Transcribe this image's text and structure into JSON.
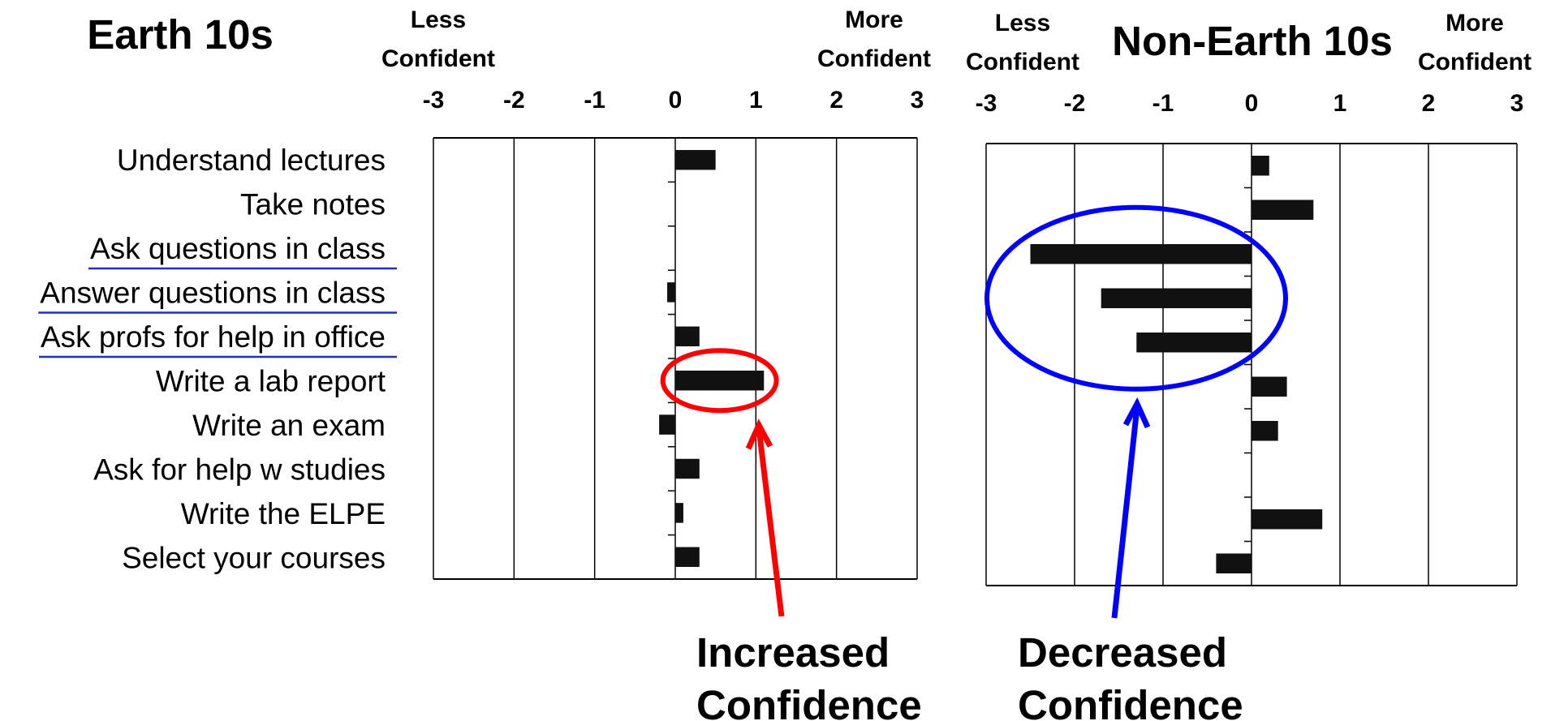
{
  "chart_data": [
    {
      "type": "bar",
      "orientation": "horizontal",
      "title": "Earth 10s",
      "left_label": [
        "Less",
        "Confident"
      ],
      "right_label": [
        "More",
        "Confident"
      ],
      "xlim": [
        -3,
        3
      ],
      "ticks": [
        "-3",
        "-2",
        "-1",
        "0",
        "1",
        "2",
        "3"
      ],
      "grid": true,
      "categories": [
        "Understand lectures",
        "Take notes",
        "Ask questions in class",
        "Answer questions in class",
        "Ask profs for help in office",
        "Write a lab report",
        "Write an exam",
        "Ask for help w studies",
        "Write the ELPE",
        "Select your courses"
      ],
      "underlined": [
        false,
        false,
        true,
        true,
        true,
        false,
        false,
        false,
        false,
        false
      ],
      "values": [
        0.5,
        0,
        0,
        -0.1,
        0.3,
        1.1,
        -0.2,
        0.3,
        0.1,
        0.3
      ],
      "annotation": {
        "lines": [
          "Increased",
          "Confidence"
        ],
        "color": "#ff0000",
        "highlight_category": "Write a lab report"
      }
    },
    {
      "type": "bar",
      "orientation": "horizontal",
      "title": "Non-Earth 10s",
      "left_label": [
        "Less",
        "Confident"
      ],
      "right_label": [
        "More",
        "Confident"
      ],
      "xlim": [
        -3,
        3
      ],
      "ticks": [
        "-3",
        "-2",
        "-1",
        "0",
        "1",
        "2",
        "3"
      ],
      "grid": true,
      "values": [
        0.2,
        0.7,
        -2.5,
        -1.7,
        -1.3,
        0.4,
        0.3,
        0,
        0.8,
        -0.4
      ],
      "annotation": {
        "lines": [
          "Decreased",
          "Confidence"
        ],
        "color": "#0000ff",
        "highlight_categories": [
          "Ask questions in class",
          "Answer questions in class",
          "Ask profs for help in office"
        ]
      }
    }
  ],
  "colors": {
    "bar": "#111111",
    "underline": "#1f2fbf",
    "red": "#ff0000",
    "blue": "#0000ff"
  }
}
